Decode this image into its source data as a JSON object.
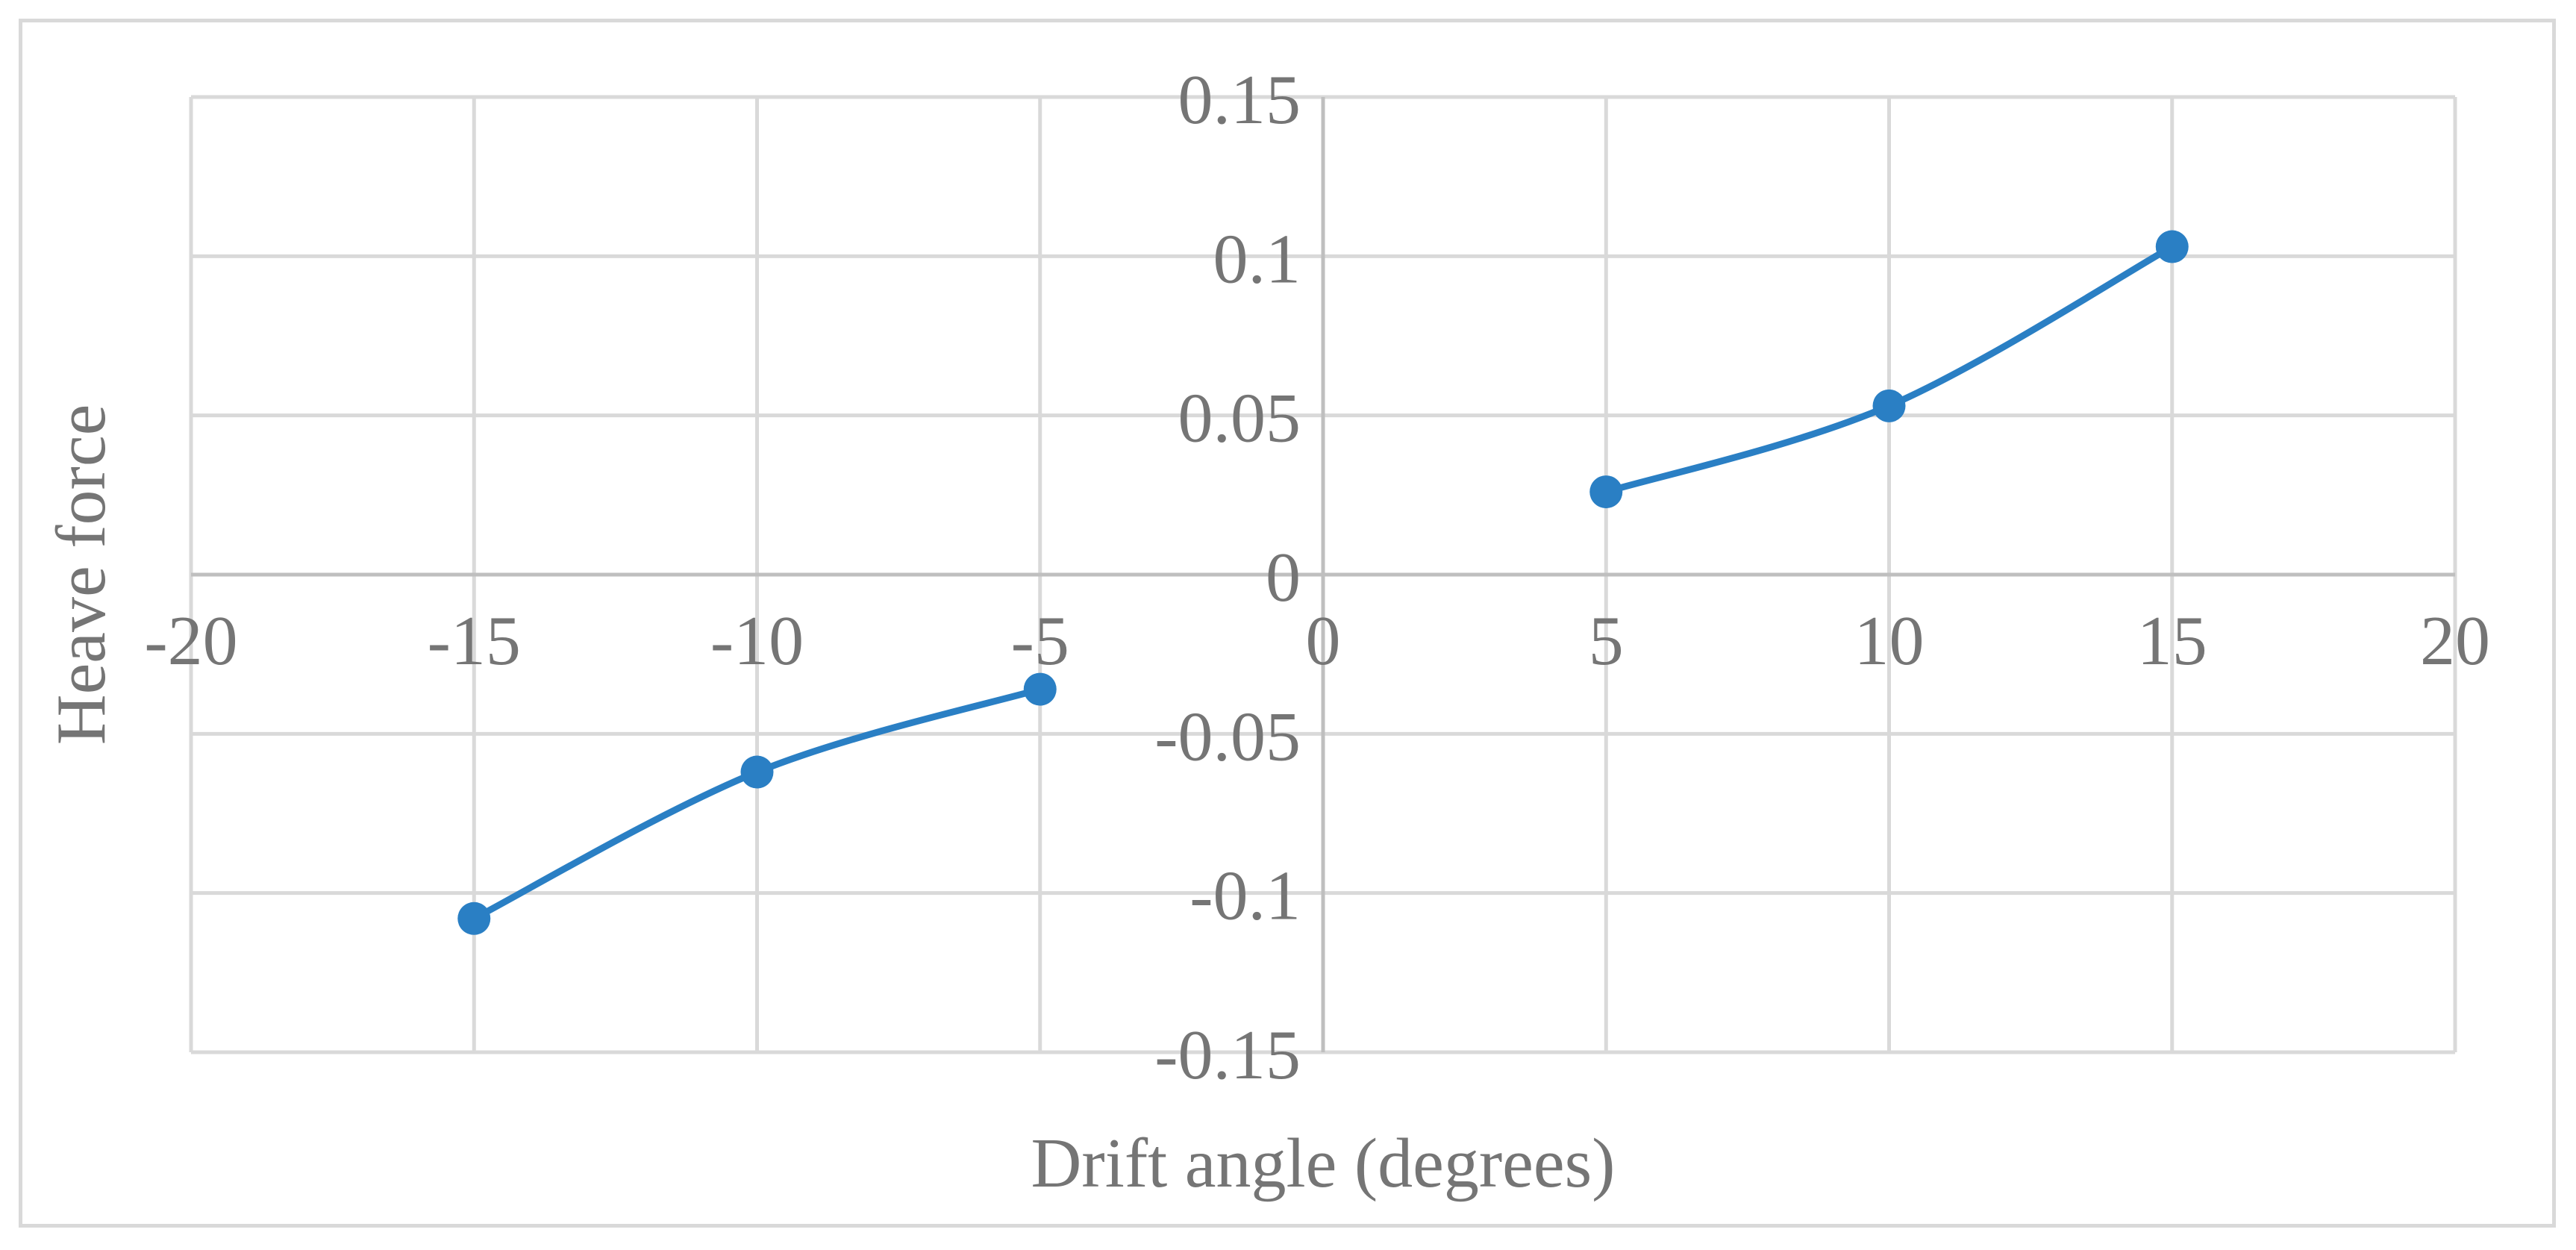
{
  "chart_data": {
    "type": "scatter",
    "title": "",
    "xlabel": "Drift angle (degrees)",
    "ylabel": "Heave force",
    "xlim": [
      -20,
      20
    ],
    "ylim": [
      -0.15,
      0.15
    ],
    "x_ticks": [
      -20,
      -15,
      -10,
      -5,
      0,
      5,
      10,
      15,
      20
    ],
    "y_ticks": [
      0.15,
      0.1,
      0.05,
      0,
      -0.05,
      -0.1,
      -0.15
    ],
    "x_tick_labels": [
      "-20",
      "-15",
      "-10",
      "-5",
      "0",
      "5",
      "10",
      "15",
      "20"
    ],
    "y_tick_labels": [
      "0.15",
      "0.1",
      "0.05",
      "0",
      "-0.05",
      "-0.1",
      "-0.15"
    ],
    "grid": true,
    "legend": "none",
    "line_style": "smooth",
    "series": [
      {
        "color": "#2a7fc4",
        "segments": [
          {
            "x": [
              -15,
              -10,
              -5
            ],
            "y": [
              -0.108,
              -0.062,
              -0.036
            ]
          },
          {
            "x": [
              5,
              10,
              15
            ],
            "y": [
              0.026,
              0.053,
              0.103
            ]
          }
        ]
      }
    ],
    "colors": {
      "grid": "#d9d9d9",
      "axis": "#bfbfbf",
      "text": "#757575",
      "frame": "#d9d9d9"
    }
  }
}
